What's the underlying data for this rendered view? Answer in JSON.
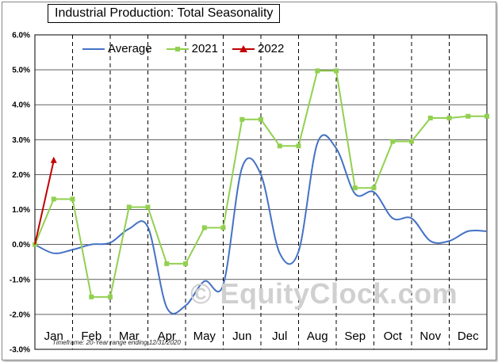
{
  "chart_data": {
    "type": "line",
    "title": "Industrial Production: Total Seasonality",
    "xlabel": "",
    "ylabel": "",
    "ylim": [
      -3.0,
      6.0
    ],
    "yticks": [
      "6.0%",
      "5.0%",
      "4.0%",
      "3.0%",
      "2.0%",
      "1.0%",
      "0.0%",
      "-1.0%",
      "-2.0%",
      "-3.0%"
    ],
    "categories": [
      "Jan",
      "Feb",
      "Mar",
      "Apr",
      "May",
      "Jun",
      "Jul",
      "Aug",
      "Sep",
      "Oct",
      "Nov",
      "Dec"
    ],
    "grid": true,
    "legend": "top-left",
    "series": [
      {
        "name": "Average",
        "color": "#4472c4",
        "marker": "none",
        "smooth": true,
        "points": [
          [
            0,
            0.0
          ],
          [
            0.5,
            -0.25
          ],
          [
            1.0,
            -0.15
          ],
          [
            1.5,
            0.0
          ],
          [
            2.0,
            0.05
          ],
          [
            2.5,
            0.45
          ],
          [
            3.0,
            0.5
          ],
          [
            3.5,
            -1.8
          ],
          [
            4.0,
            -1.75
          ],
          [
            4.5,
            -1.05
          ],
          [
            5.0,
            -1.15
          ],
          [
            5.5,
            2.2
          ],
          [
            6.0,
            2.0
          ],
          [
            6.5,
            -0.25
          ],
          [
            7.0,
            -0.2
          ],
          [
            7.5,
            2.9
          ],
          [
            8.0,
            2.75
          ],
          [
            8.5,
            1.45
          ],
          [
            9.0,
            1.5
          ],
          [
            9.5,
            0.75
          ],
          [
            10.0,
            0.75
          ],
          [
            10.5,
            0.1
          ],
          [
            11.0,
            0.1
          ],
          [
            11.5,
            0.38
          ],
          [
            12.0,
            0.38
          ]
        ]
      },
      {
        "name": "2021",
        "color": "#92d050",
        "marker": "square",
        "smooth": false,
        "points": [
          [
            0,
            0.0
          ],
          [
            0.5,
            1.3
          ],
          [
            1.0,
            1.3
          ],
          [
            1.5,
            -1.5
          ],
          [
            2.0,
            -1.5
          ],
          [
            2.5,
            1.07
          ],
          [
            3.0,
            1.07
          ],
          [
            3.5,
            -0.55
          ],
          [
            4.0,
            -0.55
          ],
          [
            4.5,
            0.48
          ],
          [
            5.0,
            0.48
          ],
          [
            5.5,
            3.58
          ],
          [
            6.0,
            3.58
          ],
          [
            6.5,
            2.82
          ],
          [
            7.0,
            2.82
          ],
          [
            7.5,
            4.97
          ],
          [
            8.0,
            4.97
          ],
          [
            8.5,
            1.62
          ],
          [
            9.0,
            1.62
          ],
          [
            9.5,
            2.95
          ],
          [
            10.0,
            2.95
          ],
          [
            10.5,
            3.62
          ],
          [
            11.0,
            3.62
          ],
          [
            11.5,
            3.67
          ],
          [
            12.0,
            3.67
          ]
        ]
      },
      {
        "name": "2022",
        "color": "#c00000",
        "marker": "triangle",
        "smooth": false,
        "points": [
          [
            0,
            0.0
          ],
          [
            0.5,
            2.4
          ]
        ]
      }
    ],
    "annotations": [
      "© EquityClock.com",
      "Timeframe: 20-Year range ending 12/31/2020"
    ]
  }
}
